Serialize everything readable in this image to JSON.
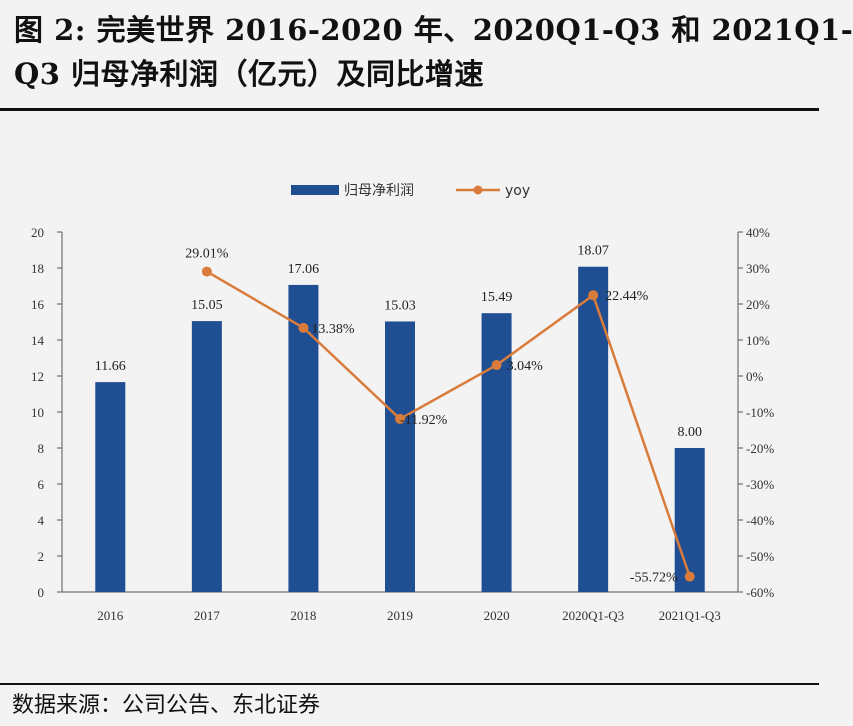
{
  "title": {
    "line1": "图 2: 完美世界 2016-2020 年、2020Q1-Q3 和 2021Q1-",
    "line2": "Q3 归母净利润（亿元）及同比增速"
  },
  "source": "数据来源：公司公告、东北证券",
  "colors": {
    "bar": "#1f4e92",
    "line": "#d97b3a",
    "axis": "#555555"
  },
  "chart_data": {
    "type": "bar",
    "categories": [
      "2016",
      "2017",
      "2018",
      "2019",
      "2020",
      "2020Q1-Q3",
      "2021Q1-Q3"
    ],
    "series": [
      {
        "name": "归母净利润",
        "type": "bar",
        "axis": "left",
        "values": [
          11.66,
          15.05,
          17.06,
          15.03,
          15.49,
          18.07,
          8.0
        ],
        "labels": [
          "11.66",
          "15.05",
          "17.06",
          "15.03",
          "15.49",
          "18.07",
          "8.00"
        ]
      },
      {
        "name": "yoy",
        "type": "line",
        "axis": "right",
        "values": [
          null,
          29.01,
          13.38,
          -11.92,
          3.04,
          22.44,
          -55.72
        ],
        "labels": [
          "",
          "29.01%",
          "13.38%",
          "-11.92%",
          "3.04%",
          "22.44%",
          "-55.72%"
        ]
      }
    ],
    "y_left": {
      "min": 0,
      "max": 20,
      "ticks": [
        "0",
        "2",
        "4",
        "6",
        "8",
        "10",
        "12",
        "14",
        "16",
        "18",
        "20"
      ]
    },
    "y_right": {
      "min": -60,
      "max": 40,
      "ticks": [
        "-60%",
        "-50%",
        "-40%",
        "-30%",
        "-20%",
        "-10%",
        "0%",
        "10%",
        "20%",
        "30%",
        "40%"
      ]
    },
    "legend_position": "top-center",
    "grid": false
  }
}
